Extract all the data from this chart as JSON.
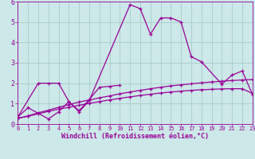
{
  "xlabel": "Windchill (Refroidissement éolien,°C)",
  "bg_color": "#cce8e8",
  "line_color": "#990099",
  "grid_color": "#aacccc",
  "xmin": 0,
  "xmax": 23,
  "ymin": 0,
  "ymax": 6,
  "series": [
    {
      "x": [
        0,
        1,
        3,
        4,
        5,
        6,
        7,
        11,
        12,
        13,
        14,
        15,
        16,
        17,
        18,
        20,
        21,
        22,
        23
      ],
      "y": [
        0.35,
        0.8,
        0.25,
        0.6,
        1.1,
        0.6,
        1.15,
        5.85,
        5.65,
        4.4,
        5.2,
        5.2,
        5.0,
        3.3,
        3.05,
        1.95,
        2.4,
        2.6,
        1.45
      ]
    },
    {
      "x": [
        0,
        2,
        3,
        4,
        5,
        6,
        7,
        8,
        9,
        10
      ],
      "y": [
        0.35,
        2.0,
        2.0,
        2.0,
        1.1,
        0.65,
        1.2,
        1.8,
        1.85,
        1.9
      ]
    },
    {
      "x": [
        0,
        1,
        2,
        3,
        4,
        5,
        6,
        7,
        8,
        9,
        10,
        11,
        12,
        13,
        14,
        15,
        16,
        17,
        18,
        19,
        20,
        21,
        22,
        23
      ],
      "y": [
        0.28,
        0.4,
        0.55,
        0.68,
        0.82,
        0.95,
        1.08,
        1.18,
        1.28,
        1.38,
        1.48,
        1.57,
        1.65,
        1.73,
        1.8,
        1.87,
        1.92,
        1.97,
        2.02,
        2.06,
        2.1,
        2.13,
        2.16,
        2.18
      ]
    },
    {
      "x": [
        0,
        1,
        2,
        3,
        4,
        5,
        6,
        7,
        8,
        9,
        10,
        11,
        12,
        13,
        14,
        15,
        16,
        17,
        18,
        19,
        20,
        21,
        22,
        23
      ],
      "y": [
        0.28,
        0.38,
        0.5,
        0.62,
        0.73,
        0.82,
        0.92,
        1.01,
        1.1,
        1.18,
        1.26,
        1.33,
        1.4,
        1.46,
        1.52,
        1.57,
        1.61,
        1.65,
        1.68,
        1.7,
        1.72,
        1.73,
        1.73,
        1.5
      ]
    }
  ]
}
